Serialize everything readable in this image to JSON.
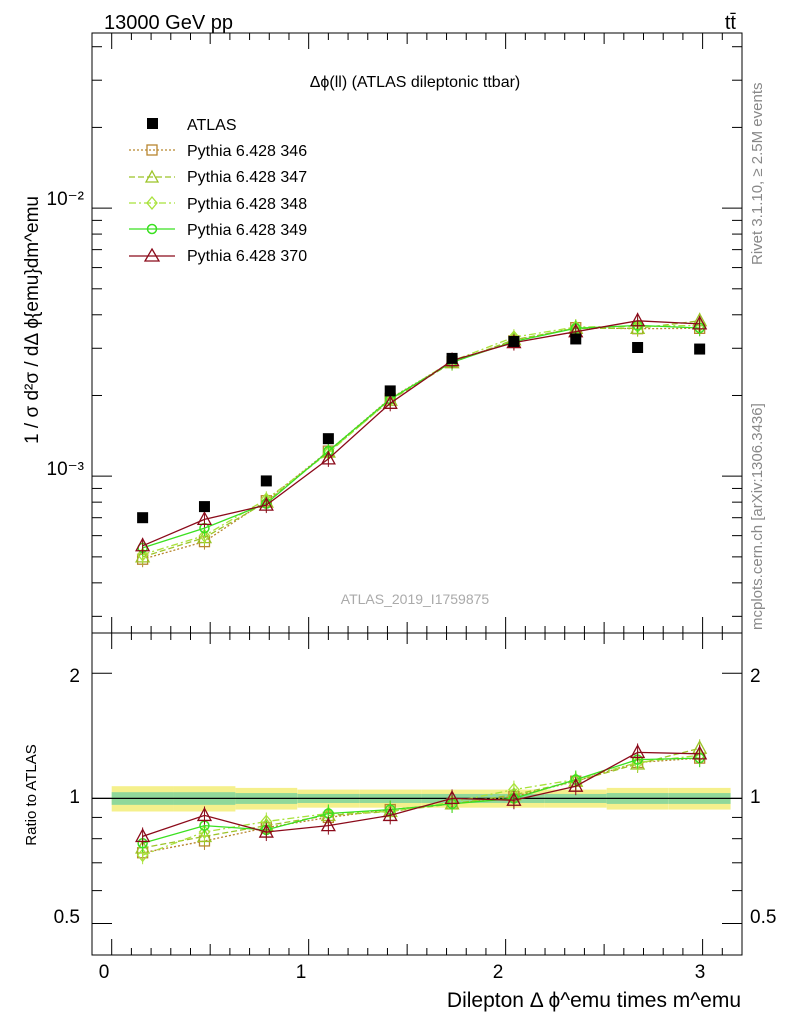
{
  "header": {
    "energy_label": "13000 GeV pp",
    "process_label": "tt̄"
  },
  "side_labels": {
    "rivet": "Rivet 3.1.10, ≥ 2.5M events",
    "mcplots": "mcplots.cern.ch [arXiv:1306.3436]"
  },
  "colors": {
    "atlas": "#000000",
    "p346": "#b8862f",
    "p347": "#9cc428",
    "p348": "#a8e23a",
    "p349": "#3ae020",
    "p370": "#8b0a1a",
    "band_outer": "#f5f08c",
    "band_inner": "#90d89a"
  },
  "chart_data": [
    {
      "type": "line",
      "title": "Δϕ(ll) (ATLAS dileptonic ttbar)",
      "ylabel": "1 / σ  d²σ / dΔ ϕ{emu}dm^emu",
      "watermark": "ATLAS_2019_I1759875",
      "yscale": "log",
      "xlim": [
        -0.1,
        3.2
      ],
      "ylim": [
        0.00026,
        0.045
      ],
      "y_tick_labels": [
        "10⁻³",
        "10⁻²"
      ],
      "x": [
        0.157,
        0.471,
        0.785,
        1.1,
        1.414,
        1.728,
        2.042,
        2.356,
        2.67,
        2.985
      ],
      "series": [
        {
          "name": "ATLAS",
          "values": [
            0.0007,
            0.00077,
            0.00096,
            0.00138,
            0.00208,
            0.00275,
            0.00318,
            0.00325,
            0.00302,
            0.00298
          ]
        },
        {
          "name": "Pythia 6.428 346",
          "values": [
            0.00049,
            0.00057,
            0.00081,
            0.00124,
            0.00195,
            0.00267,
            0.0032,
            0.00358,
            0.00355,
            0.00356
          ]
        },
        {
          "name": "Pythia 6.428 347",
          "values": [
            0.0005,
            0.00059,
            0.0008,
            0.00123,
            0.00192,
            0.00265,
            0.00323,
            0.00356,
            0.00356,
            0.0038
          ]
        },
        {
          "name": "Pythia 6.428 348",
          "values": [
            0.00051,
            0.0006,
            0.00082,
            0.00122,
            0.00193,
            0.00269,
            0.0033,
            0.0036,
            0.00362,
            0.00365
          ]
        },
        {
          "name": "Pythia 6.428 349",
          "values": [
            0.00054,
            0.00064,
            0.00079,
            0.00124,
            0.00194,
            0.00266,
            0.00318,
            0.00356,
            0.00365,
            0.00357
          ]
        },
        {
          "name": "Pythia 6.428 370",
          "values": [
            0.00055,
            0.00069,
            0.00078,
            0.00116,
            0.00187,
            0.0027,
            0.00315,
            0.00346,
            0.0038,
            0.0037
          ]
        }
      ]
    },
    {
      "type": "line",
      "ylabel": "Ratio to ATLAS",
      "xlabel": "Dilepton Δ ϕ^emu times m^emu",
      "yscale": "log",
      "xlim": [
        -0.1,
        3.2
      ],
      "ylim": [
        0.42,
        2.5
      ],
      "x_tick_labels": [
        "0",
        "1",
        "2",
        "3"
      ],
      "y_tick_labels": [
        "0.5",
        "1",
        "2"
      ],
      "x": [
        0.157,
        0.471,
        0.785,
        1.1,
        1.414,
        1.728,
        2.042,
        2.356,
        2.67,
        2.985
      ],
      "band_outer": [
        0.07,
        0.07,
        0.06,
        0.05,
        0.05,
        0.05,
        0.05,
        0.05,
        0.06,
        0.06
      ],
      "band_inner": [
        0.035,
        0.035,
        0.03,
        0.025,
        0.025,
        0.025,
        0.025,
        0.025,
        0.03,
        0.03
      ],
      "series": [
        {
          "name": "Pythia 6.428 346",
          "values": [
            0.74,
            0.79,
            0.85,
            0.9,
            0.94,
            0.97,
            1.01,
            1.1,
            1.22,
            1.25
          ]
        },
        {
          "name": "Pythia 6.428 347",
          "values": [
            0.76,
            0.81,
            0.86,
            0.91,
            0.93,
            0.97,
            1.02,
            1.1,
            1.21,
            1.32
          ]
        },
        {
          "name": "Pythia 6.428 348",
          "values": [
            0.73,
            0.83,
            0.88,
            0.92,
            0.93,
            0.98,
            1.05,
            1.11,
            1.22,
            1.27
          ]
        },
        {
          "name": "Pythia 6.428 349",
          "values": [
            0.78,
            0.86,
            0.84,
            0.92,
            0.94,
            0.97,
            1.0,
            1.11,
            1.24,
            1.25
          ]
        },
        {
          "name": "Pythia 6.428 370",
          "values": [
            0.81,
            0.91,
            0.83,
            0.86,
            0.91,
            1.0,
            0.99,
            1.07,
            1.29,
            1.28
          ]
        }
      ]
    }
  ]
}
